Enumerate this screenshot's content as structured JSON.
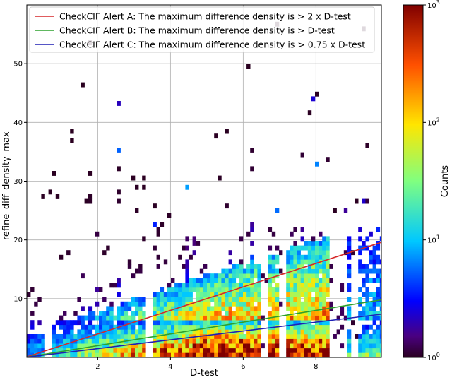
{
  "chart_data": {
    "type": "heatmap",
    "title": "",
    "xlabel": "D-test",
    "ylabel": "_refine_diff_density_max",
    "xlim": [
      0.05,
      9.8
    ],
    "ylim": [
      0,
      60
    ],
    "x_ticks": [
      "2",
      "4",
      "6",
      "8"
    ],
    "y_ticks": [
      "10",
      "20",
      "30",
      "40",
      "50"
    ],
    "grid": true,
    "colorbar": {
      "label": "Counts",
      "scale": "log",
      "range": [
        1,
        1000
      ],
      "ticks": [
        {
          "base": "10",
          "exp": "0"
        },
        {
          "base": "10",
          "exp": "1"
        },
        {
          "base": "10",
          "exp": "2"
        },
        {
          "base": "10",
          "exp": "3"
        }
      ],
      "colormap": "jet"
    },
    "legend_position": "top-left",
    "series": [
      {
        "name": "CheckCIF Alert A: The maximum difference density is > 2 x D-test",
        "color": "#d62728",
        "slope": 2.0
      },
      {
        "name": "CheckCIF Alert B: The maximum difference density is > D-test",
        "color": "#2ca02c",
        "slope": 1.0
      },
      {
        "name": "CheckCIF Alert C: The maximum difference density is > 0.75 x D-test",
        "color": "#1f1fb4",
        "slope": 0.75
      }
    ]
  }
}
